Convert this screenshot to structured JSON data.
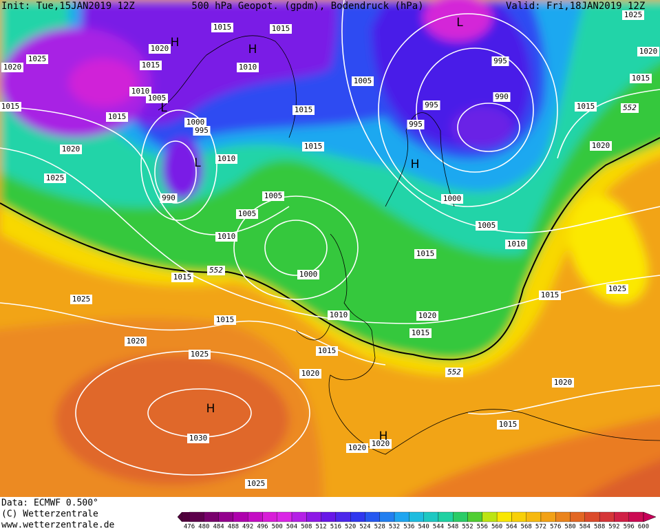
{
  "header": {
    "init": "Init: Tue,15JAN2019 12Z",
    "title": "500 hPa Geopot. (gpdm), Bodendruck (hPa)",
    "valid": "Valid: Fri,18JAN2019 12Z"
  },
  "map": {
    "isobar_labels": [
      "1015",
      "1015",
      "1020",
      "1020",
      "1025",
      "1015",
      "1010",
      "1010",
      "1005",
      "1015",
      "1015",
      "1000",
      "995",
      "1015",
      "1015",
      "1010",
      "1020",
      "1025",
      "990",
      "1005",
      "1005",
      "1010",
      "1015",
      "1000",
      "1025",
      "1015",
      "1010",
      "1020",
      "1025",
      "1015",
      "1020",
      "1030",
      "1025",
      "1020",
      "1020",
      "1005",
      "995",
      "990",
      "995",
      "995",
      "1000",
      "1005",
      "1010",
      "1015",
      "1020",
      "1015",
      "1015",
      "1025",
      "1015",
      "1020",
      "1025",
      "1020",
      "1015",
      "1020",
      "1015"
    ],
    "contour_552_labels": [
      "552",
      "552",
      "552"
    ],
    "centers": [
      "H",
      "H",
      "L",
      "L",
      "L",
      "H",
      "H",
      "H"
    ]
  },
  "colorbar": {
    "labels": [
      476,
      480,
      484,
      488,
      492,
      496,
      500,
      504,
      508,
      512,
      516,
      520,
      524,
      528,
      532,
      536,
      540,
      544,
      548,
      552,
      556,
      560,
      564,
      568,
      572,
      576,
      580,
      584,
      588,
      592,
      596,
      600
    ]
  },
  "footer": {
    "data": "Data: ECMWF  0.500°",
    "copyright": "(C) Wetterzentrale",
    "url": "www.wetterzentrale.de"
  }
}
